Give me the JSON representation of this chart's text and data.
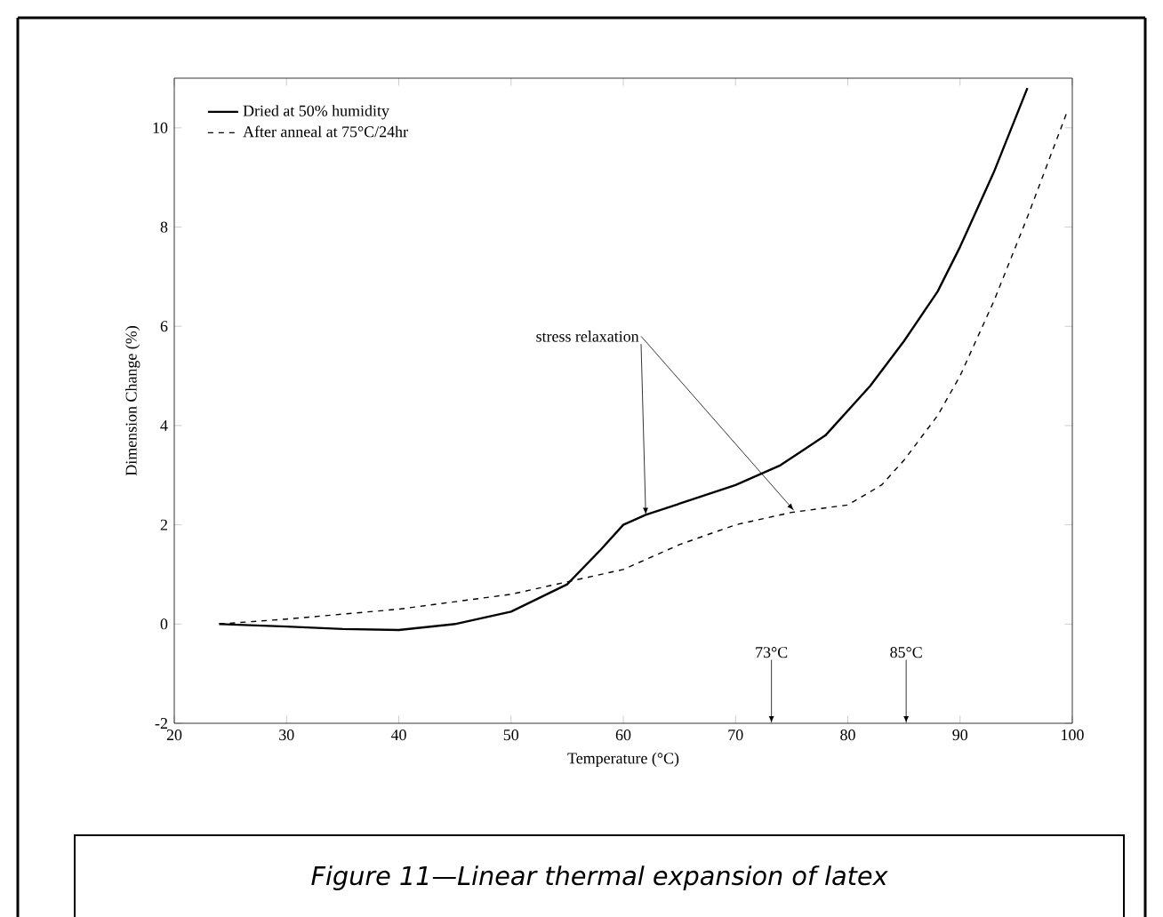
{
  "chart_data": {
    "type": "line",
    "xlabel": "Temperature (°C)",
    "ylabel": "Dimension Change (%)",
    "xlim": [
      20,
      100
    ],
    "xticks": [
      20,
      30,
      40,
      50,
      60,
      70,
      80,
      90,
      100
    ],
    "ylim": [
      -2,
      11
    ],
    "yticks": [
      -2,
      0,
      2,
      4,
      6,
      8,
      10
    ],
    "legend": "top left",
    "grid": false,
    "marker": "none",
    "series": [
      {
        "name": "Dried at 50% humidity",
        "color": "#000000",
        "line_style": "solid",
        "x": [
          24,
          30,
          35,
          40,
          45,
          50,
          55,
          58,
          60,
          62,
          66,
          70,
          74,
          78,
          82,
          85,
          88,
          90,
          93,
          96
        ],
        "values": [
          0,
          -0.05,
          -0.1,
          -0.12,
          0,
          0.25,
          0.8,
          1.5,
          2.0,
          2.2,
          2.5,
          2.8,
          3.2,
          3.8,
          4.8,
          5.7,
          6.7,
          7.6,
          9.1,
          10.8
        ]
      },
      {
        "name": "After anneal at 75°C/24hr",
        "color": "#000000",
        "line_style": "dashed",
        "x": [
          24,
          30,
          40,
          50,
          55,
          60,
          65,
          70,
          75,
          80,
          83,
          85,
          88,
          90,
          93,
          96,
          99.5
        ],
        "values": [
          0,
          0.1,
          0.3,
          0.6,
          0.85,
          1.1,
          1.6,
          2.0,
          2.25,
          2.4,
          2.8,
          3.3,
          4.2,
          5.0,
          6.5,
          8.2,
          10.3
        ]
      }
    ],
    "annotations": [
      {
        "text": "stress relaxation",
        "x": 62,
        "y": 2.2
      },
      "73°C",
      "85°C",
      "Figure 11—Linear thermal expansion of latex"
    ]
  }
}
